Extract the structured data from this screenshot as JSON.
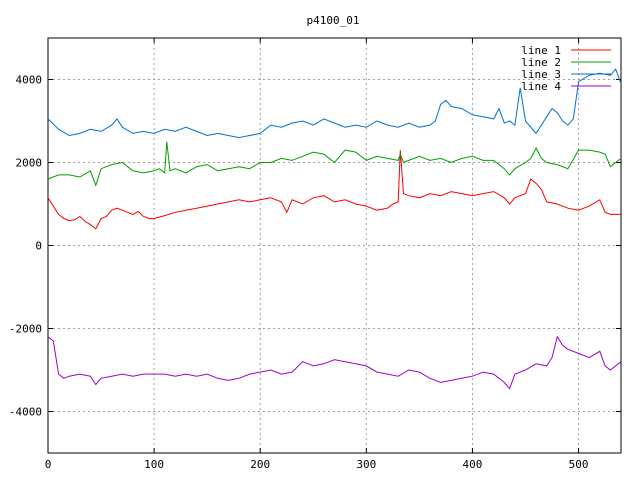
{
  "chart_data": {
    "type": "line",
    "title": "p4100_01",
    "xlabel": "",
    "ylabel": "",
    "xlim": [
      0,
      540
    ],
    "ylim": [
      -5000,
      5000
    ],
    "x_ticks": [
      0,
      100,
      200,
      300,
      400,
      500
    ],
    "y_ticks": [
      -4000,
      -2000,
      0,
      2000,
      4000
    ],
    "grid": true,
    "legend_position": "top-right",
    "series": [
      {
        "name": "line 1",
        "color": "#ff0000",
        "x": [
          0,
          5,
          10,
          15,
          20,
          25,
          30,
          35,
          40,
          45,
          50,
          55,
          60,
          65,
          70,
          75,
          80,
          85,
          90,
          95,
          100,
          110,
          120,
          130,
          140,
          150,
          160,
          170,
          180,
          190,
          200,
          210,
          220,
          225,
          230,
          240,
          250,
          260,
          270,
          280,
          290,
          300,
          310,
          320,
          325,
          330,
          332,
          335,
          340,
          350,
          360,
          370,
          380,
          390,
          400,
          410,
          420,
          430,
          435,
          440,
          450,
          455,
          460,
          465,
          470,
          480,
          490,
          500,
          510,
          520,
          525,
          530,
          540
        ],
        "values": [
          1150,
          950,
          750,
          650,
          600,
          620,
          700,
          580,
          500,
          400,
          650,
          700,
          850,
          900,
          850,
          800,
          750,
          820,
          700,
          650,
          650,
          720,
          800,
          850,
          900,
          950,
          1000,
          1050,
          1100,
          1050,
          1100,
          1150,
          1050,
          800,
          1100,
          1000,
          1150,
          1200,
          1050,
          1100,
          1000,
          950,
          850,
          900,
          1000,
          1050,
          2300,
          1250,
          1200,
          1150,
          1250,
          1200,
          1300,
          1250,
          1200,
          1250,
          1300,
          1150,
          1000,
          1150,
          1250,
          1600,
          1500,
          1350,
          1050,
          1000,
          900,
          850,
          950,
          1100,
          800,
          750,
          750
        ]
      },
      {
        "name": "line 2",
        "color": "#00a000",
        "x": [
          0,
          10,
          20,
          30,
          40,
          45,
          50,
          60,
          70,
          80,
          90,
          100,
          105,
          110,
          112,
          115,
          120,
          130,
          140,
          150,
          160,
          170,
          180,
          190,
          200,
          210,
          220,
          230,
          240,
          250,
          260,
          270,
          280,
          290,
          300,
          310,
          320,
          330,
          332,
          335,
          340,
          350,
          360,
          370,
          380,
          390,
          400,
          410,
          420,
          430,
          435,
          440,
          450,
          455,
          460,
          465,
          470,
          480,
          490,
          500,
          510,
          520,
          525,
          530,
          540
        ],
        "values": [
          1600,
          1700,
          1700,
          1650,
          1800,
          1450,
          1850,
          1950,
          2000,
          1800,
          1750,
          1800,
          1850,
          1750,
          2500,
          1800,
          1850,
          1750,
          1900,
          1950,
          1800,
          1850,
          1900,
          1850,
          2000,
          2000,
          2100,
          2050,
          2150,
          2250,
          2200,
          2000,
          2300,
          2250,
          2050,
          2150,
          2100,
          2050,
          2200,
          2000,
          2050,
          2150,
          2050,
          2100,
          2000,
          2100,
          2150,
          2050,
          2050,
          1850,
          1700,
          1850,
          2000,
          2100,
          2350,
          2100,
          2000,
          1950,
          1850,
          2300,
          2300,
          2250,
          2200,
          1900,
          2100
        ]
      },
      {
        "name": "line 3",
        "color": "#0070d0",
        "x": [
          0,
          10,
          20,
          30,
          40,
          50,
          60,
          65,
          70,
          80,
          90,
          100,
          110,
          120,
          130,
          140,
          150,
          160,
          170,
          180,
          190,
          200,
          210,
          220,
          230,
          240,
          250,
          260,
          270,
          280,
          290,
          300,
          310,
          320,
          330,
          340,
          350,
          360,
          365,
          370,
          375,
          380,
          390,
          400,
          410,
          420,
          425,
          430,
          435,
          440,
          445,
          450,
          460,
          470,
          475,
          480,
          485,
          490,
          495,
          500,
          510,
          520,
          530,
          535,
          540
        ],
        "values": [
          3050,
          2800,
          2650,
          2700,
          2800,
          2750,
          2900,
          3050,
          2850,
          2700,
          2750,
          2700,
          2800,
          2750,
          2850,
          2750,
          2650,
          2700,
          2650,
          2600,
          2650,
          2700,
          2900,
          2850,
          2950,
          3000,
          2900,
          3050,
          2950,
          2850,
          2900,
          2850,
          3000,
          2900,
          2850,
          2950,
          2850,
          2900,
          3000,
          3400,
          3500,
          3350,
          3300,
          3150,
          3100,
          3050,
          3300,
          2950,
          3000,
          2900,
          3800,
          3000,
          2700,
          3100,
          3300,
          3200,
          3000,
          2900,
          3050,
          3950,
          4100,
          4150,
          4100,
          4250,
          3900
        ]
      },
      {
        "name": "line 4",
        "color": "#a000d0",
        "x": [
          0,
          5,
          10,
          15,
          20,
          30,
          40,
          45,
          50,
          60,
          70,
          80,
          90,
          100,
          110,
          120,
          130,
          140,
          150,
          160,
          170,
          180,
          190,
          200,
          210,
          220,
          230,
          240,
          250,
          260,
          270,
          280,
          290,
          300,
          310,
          320,
          330,
          340,
          350,
          360,
          370,
          380,
          390,
          400,
          410,
          420,
          430,
          435,
          440,
          450,
          460,
          470,
          475,
          480,
          485,
          490,
          500,
          510,
          520,
          525,
          530,
          540
        ],
        "values": [
          -2200,
          -2300,
          -3100,
          -3200,
          -3150,
          -3100,
          -3150,
          -3350,
          -3200,
          -3150,
          -3100,
          -3150,
          -3100,
          -3100,
          -3100,
          -3150,
          -3100,
          -3150,
          -3100,
          -3200,
          -3250,
          -3200,
          -3100,
          -3050,
          -3000,
          -3100,
          -3050,
          -2800,
          -2900,
          -2850,
          -2750,
          -2800,
          -2850,
          -2900,
          -3050,
          -3100,
          -3150,
          -3000,
          -3050,
          -3200,
          -3300,
          -3250,
          -3200,
          -3150,
          -3050,
          -3100,
          -3300,
          -3450,
          -3100,
          -3000,
          -2850,
          -2900,
          -2700,
          -2200,
          -2400,
          -2500,
          -2600,
          -2700,
          -2550,
          -2900,
          -3000,
          -2800
        ]
      }
    ]
  }
}
